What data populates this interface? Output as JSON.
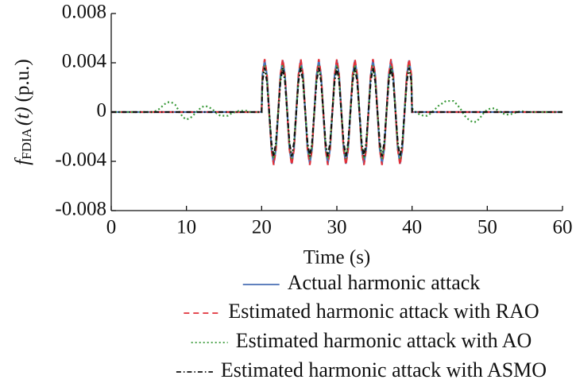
{
  "chart_data": {
    "type": "line",
    "y_label": {
      "symbol": "f",
      "subscript": "FDIA",
      "argument": "(t)",
      "unit": "(p.u.)"
    },
    "x_label": "Time (s)",
    "xlim": [
      0,
      60
    ],
    "xticks": [
      0,
      10,
      20,
      30,
      40,
      50,
      60
    ],
    "ylim": [
      -0.008,
      0.008
    ],
    "yticks": [
      -0.008,
      -0.004,
      0,
      0.004,
      0.008
    ],
    "x": [
      0,
      1,
      2,
      3,
      4,
      5,
      5.5,
      6,
      6.5,
      7,
      7.5,
      8,
      8.5,
      9,
      9.5,
      10,
      10.5,
      11,
      11.5,
      12,
      12.5,
      13,
      13.5,
      14,
      14.5,
      15,
      15.5,
      16,
      16.5,
      17,
      17.5,
      18,
      18.5,
      19,
      19.5,
      20,
      20.1,
      20.4,
      20.7,
      21,
      21.3,
      21.6,
      21.9,
      22.2,
      22.5,
      22.8,
      23.1,
      23.4,
      23.7,
      24,
      24.3,
      24.6,
      24.9,
      25.2,
      25.5,
      25.8,
      26.1,
      26.4,
      26.7,
      27,
      27.3,
      27.6,
      27.9,
      28.2,
      28.5,
      28.8,
      29.1,
      29.4,
      29.7,
      30,
      30.3,
      30.6,
      30.9,
      31.2,
      31.5,
      31.8,
      32.1,
      32.4,
      32.7,
      33,
      33.3,
      33.6,
      33.9,
      34.2,
      34.5,
      34.8,
      35.1,
      35.4,
      35.7,
      36,
      36.3,
      36.6,
      36.9,
      37.2,
      37.5,
      37.8,
      38.1,
      38.4,
      38.7,
      39,
      39.3,
      39.6,
      39.9,
      40,
      40.5,
      41,
      41.5,
      42,
      42.5,
      43,
      43.5,
      44,
      44.5,
      45,
      45.5,
      46,
      46.5,
      47,
      47.5,
      48,
      48.5,
      49,
      49.5,
      50,
      50.5,
      51,
      51.5,
      52,
      52.5,
      53,
      53.5,
      54,
      54.5,
      55,
      55.5,
      56,
      57,
      58,
      59,
      60
    ],
    "series": [
      {
        "name": "Actual harmonic attack",
        "color": "#4a6fb5",
        "dash": "none",
        "values": [
          0,
          0,
          0,
          0,
          0,
          0,
          0,
          0,
          0,
          0,
          0,
          0,
          0,
          0,
          0,
          0,
          0,
          0,
          0,
          0,
          0,
          0,
          0,
          0,
          0,
          0,
          0,
          0,
          0,
          0,
          0,
          0,
          0,
          0,
          0,
          0,
          0.003,
          0.0042,
          0.003,
          0,
          -0.003,
          -0.0042,
          -0.003,
          0,
          0.003,
          0.0042,
          0.003,
          0,
          -0.003,
          -0.0042,
          -0.003,
          0,
          0.003,
          0.0042,
          0.003,
          0,
          -0.003,
          -0.0042,
          -0.003,
          0,
          0.003,
          0.0042,
          0.003,
          0,
          -0.003,
          -0.0042,
          -0.003,
          0,
          0.003,
          0.0042,
          0.003,
          0,
          -0.003,
          -0.0042,
          -0.003,
          0,
          0.003,
          0.0042,
          0.003,
          0,
          -0.003,
          -0.0042,
          -0.003,
          0,
          0.003,
          0.0042,
          0.003,
          0,
          -0.003,
          -0.0042,
          -0.003,
          0,
          0.003,
          0.0042,
          0.003,
          0,
          -0.003,
          -0.0042,
          -0.003,
          0,
          0.003,
          0.0042,
          0.003,
          0,
          0,
          0,
          0,
          0,
          0,
          0,
          0,
          0,
          0,
          0,
          0,
          0,
          0,
          0,
          0,
          0,
          0,
          0,
          0,
          0,
          0,
          0,
          0,
          0,
          0,
          0,
          0,
          0,
          0,
          0,
          0,
          0,
          0,
          0,
          0,
          0
        ]
      },
      {
        "name": "Estimated harmonic attack with RAO",
        "color": "#e0303a",
        "dash": "7,5",
        "values": [
          0,
          0,
          0,
          0,
          0,
          0,
          0,
          0,
          0,
          0,
          0,
          0,
          0,
          0,
          0,
          0,
          0,
          0,
          0,
          0,
          0,
          0,
          0,
          0,
          0,
          0,
          0,
          0,
          0,
          0,
          0,
          0,
          0,
          0,
          0,
          0,
          0.00304,
          0.0043,
          0.00304,
          0,
          -0.00304,
          -0.0043,
          -0.00304,
          0,
          0.00304,
          0.0043,
          0.00304,
          0,
          -0.00304,
          -0.0043,
          -0.00304,
          0,
          0.00304,
          0.0043,
          0.00304,
          0,
          -0.00304,
          -0.0043,
          -0.00304,
          0,
          0.00304,
          0.0043,
          0.00304,
          0,
          -0.00304,
          -0.0043,
          -0.00304,
          0,
          0.00304,
          0.0043,
          0.00304,
          0,
          -0.00304,
          -0.0043,
          -0.00304,
          0,
          0.00304,
          0.0043,
          0.00304,
          0,
          -0.00304,
          -0.0043,
          -0.00304,
          0,
          0.00304,
          0.0043,
          0.00304,
          0,
          -0.00304,
          -0.0043,
          -0.00304,
          0,
          0.00304,
          0.0043,
          0.00304,
          0,
          -0.00304,
          -0.0043,
          -0.00304,
          0,
          0.00304,
          0.0043,
          0.00304,
          0,
          0,
          0,
          0,
          0,
          0,
          0,
          0,
          0,
          0,
          0,
          0,
          0,
          0,
          0,
          0,
          0,
          0,
          0,
          0,
          0,
          0,
          0,
          0,
          0,
          0,
          0,
          0,
          0,
          0,
          0,
          0,
          0,
          0,
          0,
          0,
          0
        ]
      },
      {
        "name": "Estimated harmonic attack with AO",
        "color": "#3a9a3a",
        "dash": "2,3",
        "values": [
          0,
          0,
          0,
          0,
          0,
          0,
          0,
          0.0001,
          0.0003,
          0.0006,
          0.0008,
          0.0008,
          0.0006,
          0.0001,
          -0.0004,
          -0.0006,
          -0.0005,
          -0.0002,
          0.0001,
          0.0004,
          0.0005,
          0.0004,
          0.0002,
          -0.0001,
          -0.0003,
          -0.0003,
          -0.0003,
          -0.0001,
          0,
          0.0001,
          0.0001,
          0.0001,
          0,
          0,
          0,
          0,
          0.0027,
          0.0038,
          0.0027,
          0,
          -0.0027,
          -0.0038,
          -0.0027,
          0,
          0.0027,
          0.0038,
          0.0027,
          0,
          -0.0027,
          -0.0038,
          -0.0027,
          0,
          0.0027,
          0.0038,
          0.0027,
          0,
          -0.0027,
          -0.0038,
          -0.0027,
          0,
          0.0027,
          0.0038,
          0.0027,
          0,
          -0.0027,
          -0.0038,
          -0.0027,
          0,
          0.0027,
          0.0038,
          0.0027,
          0,
          -0.0027,
          -0.0038,
          -0.0027,
          0,
          0.0027,
          0.0038,
          0.0027,
          0,
          -0.0027,
          -0.0038,
          -0.0027,
          0,
          0.0027,
          0.0038,
          0.0027,
          0,
          -0.0027,
          -0.0038,
          -0.0027,
          0,
          0.0027,
          0.0038,
          0.0027,
          0,
          -0.0027,
          -0.0038,
          -0.0027,
          0,
          0.0027,
          0.0038,
          0.0027,
          0.0003,
          0,
          -0.0002,
          -0.0003,
          -0.0003,
          -0.0001,
          0.0002,
          0.0005,
          0.0007,
          0.0009,
          0.0009,
          0.0009,
          0.0006,
          0.0002,
          -0.0003,
          -0.0006,
          -0.0008,
          -0.0008,
          -0.0005,
          -0.0001,
          0.0002,
          0.0003,
          0.0003,
          0.0001,
          -0.0001,
          -0.0002,
          -0.0002,
          -0.0001,
          0,
          0.0001,
          0,
          0,
          0,
          0,
          0,
          0,
          0
        ]
      },
      {
        "name": "Estimated harmonic attack with ASMO",
        "color": "#111111",
        "dash": "6,3,1.5,3",
        "values": [
          0,
          0,
          0,
          0,
          0,
          0,
          0,
          0,
          0,
          0,
          0,
          0,
          0,
          0,
          0,
          0,
          0,
          0,
          0,
          0,
          0,
          0,
          0,
          0,
          0,
          0,
          0,
          0,
          0,
          0,
          0,
          0,
          0,
          0,
          0,
          0,
          0.0025,
          0.0036,
          0.0025,
          0,
          -0.0025,
          -0.0036,
          -0.0025,
          0,
          0.0025,
          0.0036,
          0.0025,
          0,
          -0.0025,
          -0.0036,
          -0.0025,
          0,
          0.0025,
          0.0036,
          0.0025,
          0,
          -0.0025,
          -0.0036,
          -0.0025,
          0,
          0.0025,
          0.0036,
          0.0025,
          0,
          -0.0025,
          -0.0036,
          -0.0025,
          0,
          0.0025,
          0.0036,
          0.0025,
          0,
          -0.0025,
          -0.0036,
          -0.0025,
          0,
          0.0025,
          0.0036,
          0.0025,
          0,
          -0.0025,
          -0.0036,
          -0.0025,
          0,
          0.0025,
          0.0036,
          0.0025,
          0,
          -0.0025,
          -0.0036,
          -0.0025,
          0,
          0.0025,
          0.0036,
          0.0025,
          0,
          -0.0025,
          -0.0036,
          -0.0025,
          0,
          0.0025,
          0.0036,
          0.0025,
          0,
          0,
          0,
          0,
          0,
          0,
          0,
          0,
          0,
          0,
          0,
          0,
          0,
          0,
          0,
          0,
          0,
          0,
          0,
          0,
          0,
          0,
          0,
          0,
          0,
          0,
          0,
          0,
          0,
          0,
          0,
          0,
          0,
          0,
          0,
          0,
          0
        ]
      }
    ]
  }
}
